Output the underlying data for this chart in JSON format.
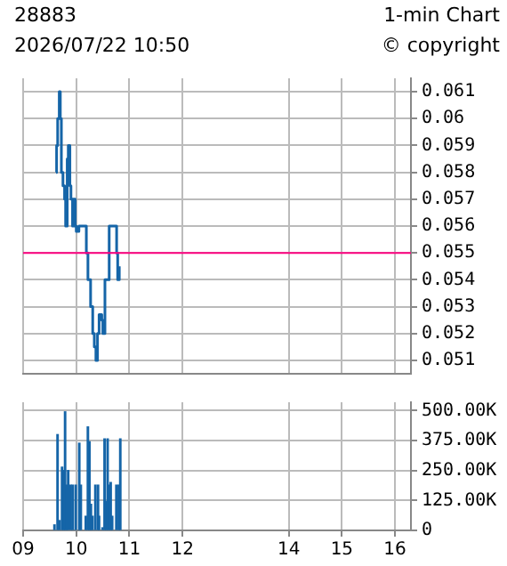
{
  "chart_data": [
    {
      "type": "step",
      "title": "28883",
      "subtitle": "2026/07/22 10:50",
      "annotations": [
        "1-min Chart",
        "© copyright"
      ],
      "x": [
        9.62,
        9.63,
        9.65,
        9.68,
        9.7,
        9.72,
        9.75,
        9.78,
        9.8,
        9.83,
        9.85,
        9.88,
        9.9,
        9.93,
        9.95,
        9.98,
        10.0,
        10.05,
        10.1,
        10.15,
        10.19,
        10.22,
        10.27,
        10.31,
        10.34,
        10.37,
        10.4,
        10.43,
        10.48,
        10.5,
        10.54,
        10.6,
        10.62,
        10.71,
        10.76,
        10.78,
        10.81
      ],
      "series": [
        {
          "color": "#1565a8",
          "values": [
            0.058,
            0.059,
            0.06,
            0.061,
            0.06,
            0.058,
            0.0575,
            0.057,
            0.056,
            0.0585,
            0.059,
            0.0575,
            0.057,
            0.056,
            0.057,
            0.056,
            0.0558,
            0.056,
            0.056,
            0.056,
            0.055,
            0.054,
            0.053,
            0.052,
            0.0515,
            0.051,
            0.052,
            0.0527,
            0.0525,
            0.052,
            0.054,
            0.054,
            0.056,
            0.056,
            0.055,
            0.054,
            0.0545
          ]
        }
      ],
      "xlim": [
        9,
        16.3
      ],
      "xticks": [
        9,
        10,
        11,
        12,
        14,
        15,
        16
      ],
      "ylim": [
        0.0505,
        0.0615
      ],
      "yticks": [
        0.051,
        0.052,
        0.053,
        0.054,
        0.055,
        0.056,
        0.057,
        0.058,
        0.059,
        0.06,
        0.061
      ],
      "ref_lines": [
        {
          "axis": "y",
          "value": 0.055,
          "color": "#ff0080"
        }
      ],
      "grid": true,
      "legend": false,
      "marker": "none",
      "tick_labels": "y"
    },
    {
      "type": "bar",
      "x": [
        9.59,
        9.648,
        9.686,
        9.733,
        9.762,
        9.79,
        9.819,
        9.848,
        9.895,
        9.933,
        9.99,
        10.057,
        10.086,
        10.18,
        10.219,
        10.248,
        10.276,
        10.305,
        10.36,
        10.41,
        10.429,
        10.495,
        10.533,
        10.562,
        10.59,
        10.619,
        10.648,
        10.676,
        10.755,
        10.8,
        10.829
      ],
      "series": [
        {
          "color": "#1565a8",
          "values": [
            23000,
            400000,
            41000,
            264000,
            250000,
            495000,
            189000,
            250000,
            189000,
            189000,
            189000,
            364000,
            189000,
            59000,
            432000,
            370000,
            109000,
            59000,
            189000,
            189000,
            59000,
            11000,
            382000,
            120000,
            382000,
            189000,
            200000,
            59000,
            189000,
            189000,
            382000
          ]
        }
      ],
      "xlim": [
        9,
        16.3
      ],
      "xticks": [
        {
          "value": 9,
          "label": "09"
        },
        10,
        11,
        12,
        14,
        15,
        16
      ],
      "ylim": [
        0,
        535000
      ],
      "yticks": [
        0,
        {
          "value": 125000,
          "label": "125.00K"
        },
        {
          "value": 250000,
          "label": "250.00K"
        },
        {
          "value": 375000,
          "label": "375.00K"
        },
        {
          "value": 500000,
          "label": "500.00K"
        }
      ],
      "grid": true,
      "legend": false
    }
  ]
}
